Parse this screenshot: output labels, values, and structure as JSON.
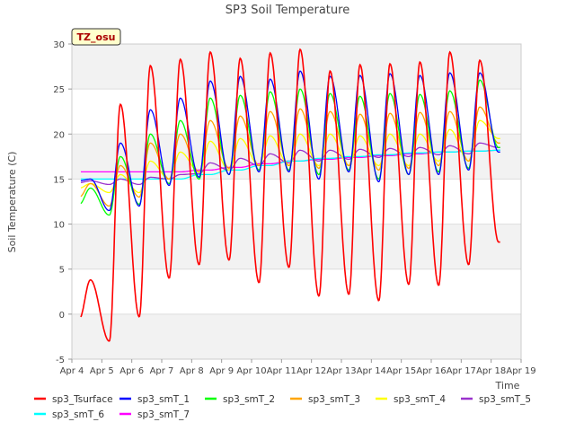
{
  "chart_data": {
    "type": "line",
    "title": "SP3 Soil Temperature",
    "xlabel": "Time",
    "ylabel": "Soil Temperature (C)",
    "annotation": "TZ_osu",
    "xlim": [
      0,
      15
    ],
    "ylim": [
      -5,
      30
    ],
    "x_ticks": [
      {
        "value": 0,
        "label": "Apr 4"
      },
      {
        "value": 1,
        "label": "Apr 5"
      },
      {
        "value": 2,
        "label": "Apr 6"
      },
      {
        "value": 3,
        "label": "Apr 7"
      },
      {
        "value": 4,
        "label": "Apr 8"
      },
      {
        "value": 5,
        "label": "Apr 9"
      },
      {
        "value": 6,
        "label": "Apr 10"
      },
      {
        "value": 7,
        "label": "Apr 11"
      },
      {
        "value": 8,
        "label": "Apr 12"
      },
      {
        "value": 9,
        "label": "Apr 13"
      },
      {
        "value": 10,
        "label": "Apr 14"
      },
      {
        "value": 11,
        "label": "Apr 15"
      },
      {
        "value": 12,
        "label": "Apr 16"
      },
      {
        "value": 13,
        "label": "Apr 17"
      },
      {
        "value": 14,
        "label": "Apr 18"
      },
      {
        "value": 15,
        "label": "Apr 19"
      }
    ],
    "y_ticks": [
      {
        "value": -5,
        "label": "-5"
      },
      {
        "value": 0,
        "label": "0"
      },
      {
        "value": 5,
        "label": "5"
      },
      {
        "value": 10,
        "label": "10"
      },
      {
        "value": 15,
        "label": "15"
      },
      {
        "value": 20,
        "label": "20"
      },
      {
        "value": 25,
        "label": "25"
      },
      {
        "value": 30,
        "label": "30"
      }
    ],
    "x_unit": "days since Apr 4",
    "series": [
      {
        "name": "sp3_Tsurface",
        "color": "#ff0000",
        "x_start": 0.3,
        "x_end": 14.3,
        "daily_min": [
          -0.5,
          -3.0,
          -0.3,
          4.0,
          5.5,
          6.0,
          3.5,
          5.2,
          2.0,
          2.2,
          1.5,
          3.3,
          3.2,
          5.5,
          8.0
        ],
        "daily_max": [
          3.8,
          23.3,
          27.6,
          28.3,
          29.1,
          28.4,
          29.0,
          29.4,
          27.0,
          27.7,
          27.8,
          28.0,
          29.1,
          28.2
        ]
      },
      {
        "name": "sp3_smT_1",
        "color": "#0000ff",
        "x_start": 0.3,
        "x_end": 14.3,
        "daily_min": [
          14.8,
          11.5,
          12.0,
          14.3,
          15.2,
          15.5,
          15.8,
          15.8,
          15.0,
          15.8,
          14.7,
          15.5,
          15.5,
          16.0,
          18.0
        ],
        "daily_max": [
          15.0,
          19.0,
          22.7,
          24.0,
          25.9,
          26.4,
          26.1,
          27.0,
          26.4,
          26.5,
          26.7,
          26.5,
          26.8,
          26.8
        ]
      },
      {
        "name": "sp3_smT_2",
        "color": "#00ff00",
        "x_start": 0.3,
        "x_end": 14.3,
        "daily_min": [
          12.2,
          11.0,
          12.2,
          14.5,
          15.0,
          15.5,
          16.0,
          16.0,
          15.5,
          16.0,
          15.0,
          15.5,
          15.8,
          16.2,
          18.5
        ],
        "daily_max": [
          14.0,
          17.5,
          20.0,
          21.5,
          24.0,
          24.3,
          24.7,
          25.0,
          24.5,
          24.2,
          24.5,
          24.4,
          24.8,
          26.0
        ]
      },
      {
        "name": "sp3_smT_3",
        "color": "#ffa500",
        "x_start": 0.3,
        "x_end": 14.3,
        "daily_min": [
          13.0,
          12.0,
          13.0,
          15.0,
          15.8,
          16.2,
          16.5,
          16.5,
          16.2,
          16.5,
          16.0,
          16.2,
          16.5,
          17.0,
          19.0
        ],
        "daily_max": [
          14.5,
          16.5,
          19.0,
          20.0,
          21.5,
          22.0,
          22.5,
          22.8,
          22.5,
          22.2,
          22.3,
          22.4,
          22.5,
          23.0
        ]
      },
      {
        "name": "sp3_smT_4",
        "color": "#ffff00",
        "x_start": 0.3,
        "x_end": 14.3,
        "daily_min": [
          14.0,
          13.5,
          13.5,
          15.0,
          15.8,
          16.0,
          16.5,
          16.5,
          16.5,
          16.5,
          16.5,
          16.5,
          17.0,
          17.0,
          19.5
        ],
        "daily_max": [
          14.5,
          15.5,
          17.0,
          18.0,
          19.2,
          19.5,
          19.8,
          20.0,
          20.0,
          19.8,
          20.0,
          20.0,
          20.5,
          21.5
        ]
      },
      {
        "name": "sp3_smT_5",
        "color": "#9a32cd",
        "x_start": 0.3,
        "x_end": 14.3,
        "daily_min": [
          14.6,
          14.4,
          14.4,
          15.0,
          15.6,
          16.0,
          16.5,
          16.8,
          17.0,
          17.2,
          17.4,
          17.5,
          17.7,
          17.8,
          18.5
        ],
        "daily_max": [
          14.8,
          15.0,
          15.2,
          15.5,
          16.8,
          17.3,
          17.8,
          18.2,
          18.2,
          18.3,
          18.4,
          18.5,
          18.7,
          19.0
        ]
      },
      {
        "name": "sp3_smT_6",
        "color": "#00ffff",
        "x_start": 0.3,
        "x_end": 14.3,
        "daily_min": [
          15.0,
          15.0,
          15.0,
          15.0,
          15.5,
          16.0,
          16.5,
          17.0,
          17.3,
          17.5,
          17.7,
          17.9,
          18.0,
          18.1,
          18.2
        ],
        "daily_max": [
          15.0,
          15.0,
          15.0,
          15.0,
          15.5,
          16.0,
          16.5,
          17.0,
          17.3,
          17.5,
          17.7,
          17.9,
          18.0,
          18.1
        ]
      },
      {
        "name": "sp3_smT_7",
        "color": "#ff00ff",
        "x_start": 0.3,
        "x_end": 14.3,
        "daily_min": [
          15.8,
          15.8,
          15.8,
          15.8,
          16.0,
          16.3,
          16.7,
          17.0,
          17.2,
          17.4,
          17.6,
          17.8,
          18.0,
          18.1,
          18.2
        ],
        "daily_max": [
          15.8,
          15.8,
          15.8,
          15.8,
          16.0,
          16.3,
          16.7,
          17.0,
          17.2,
          17.4,
          17.6,
          17.8,
          18.0,
          18.1
        ]
      }
    ],
    "legend_position": "bottom"
  }
}
